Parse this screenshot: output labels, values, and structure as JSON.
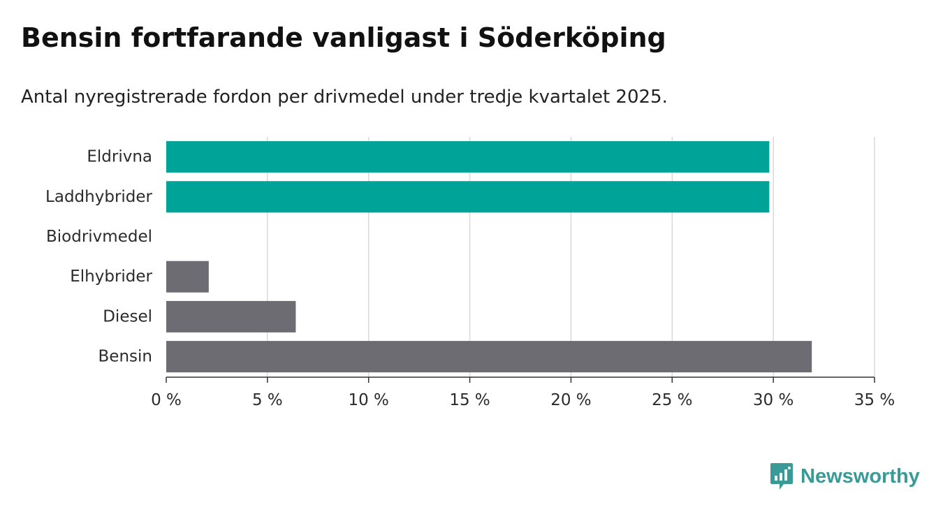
{
  "header": {
    "title": "Bensin fortfarande vanligast i Söderköping",
    "subtitle": "Antal nyregistrerade fordon per drivmedel under tredje kvartalet 2025."
  },
  "chart_data": {
    "type": "bar",
    "orientation": "horizontal",
    "categories": [
      "Eldrivna",
      "Laddhybrider",
      "Biodrivmedel",
      "Elhybrider",
      "Diesel",
      "Bensin"
    ],
    "values": [
      29.8,
      29.8,
      0,
      2.1,
      6.4,
      31.9
    ],
    "bar_colors": [
      "#00a397",
      "#00a397",
      "#00a397",
      "#6d6c73",
      "#6d6c73",
      "#6d6c73"
    ],
    "xlim": [
      0,
      35
    ],
    "xticks": [
      0,
      5,
      10,
      15,
      20,
      25,
      30,
      35
    ],
    "xtick_labels": [
      "0 %",
      "5 %",
      "10 %",
      "15 %",
      "20 %",
      "25 %",
      "30 %",
      "35 %"
    ],
    "grid": true,
    "title": "Bensin fortfarande vanligast i Söderköping",
    "xlabel": "",
    "ylabel": ""
  },
  "brand": {
    "name": "Newsworthy",
    "color": "#3a9a96",
    "icon": "newsworthy-chart-icon"
  }
}
